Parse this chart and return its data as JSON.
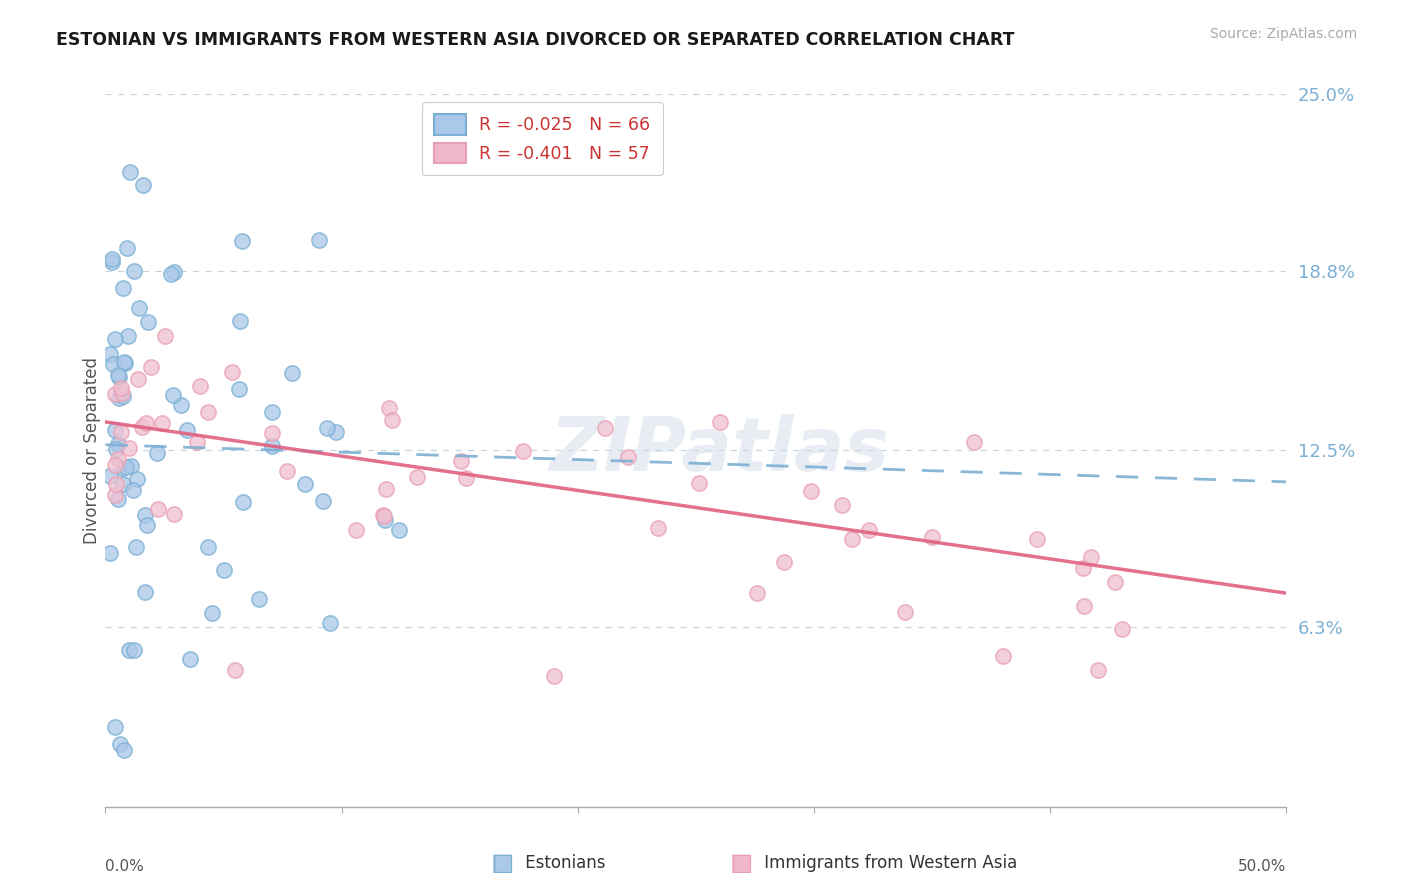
{
  "title": "ESTONIAN VS IMMIGRANTS FROM WESTERN ASIA DIVORCED OR SEPARATED CORRELATION CHART",
  "source_text": "Source: ZipAtlas.com",
  "ylabel": "Divorced or Separated",
  "legend_label1": "Estonians",
  "legend_label2": "Immigrants from Western Asia",
  "R1": -0.025,
  "N1": 66,
  "R2": -0.401,
  "N2": 57,
  "color_blue": "#7bafd4",
  "color_blue_fill": "#aac8e8",
  "color_pink": "#e8a0b4",
  "color_pink_fill": "#f0c0d0",
  "color_blue_line": "#7bafd4",
  "color_pink_line": "#e06080",
  "color_right_axis": "#7bafd4",
  "xlim": [
    0.0,
    0.5
  ],
  "ylim": [
    0.0,
    0.25
  ],
  "yticks_right": [
    0.063,
    0.125,
    0.188,
    0.25
  ],
  "ytick_right_labels": [
    "6.3%",
    "12.5%",
    "18.8%",
    "25.0%"
  ],
  "xtick_left_label": "0.0%",
  "xtick_right_label": "50.0%",
  "blue_line_x0": 0.0,
  "blue_line_y0": 0.127,
  "blue_line_x1": 0.5,
  "blue_line_y1": 0.114,
  "pink_line_x0": 0.0,
  "pink_line_y0": 0.135,
  "pink_line_x1": 0.5,
  "pink_line_y1": 0.075,
  "watermark_text": "ZIPatlas",
  "background_color": "#ffffff",
  "grid_color": "#c8d4e0",
  "legend_box_color1": "#aac8e8",
  "legend_box_color2": "#f0b8c8",
  "legend_border_color1": "#7bafd4",
  "legend_border_color2": "#e8a0b4"
}
